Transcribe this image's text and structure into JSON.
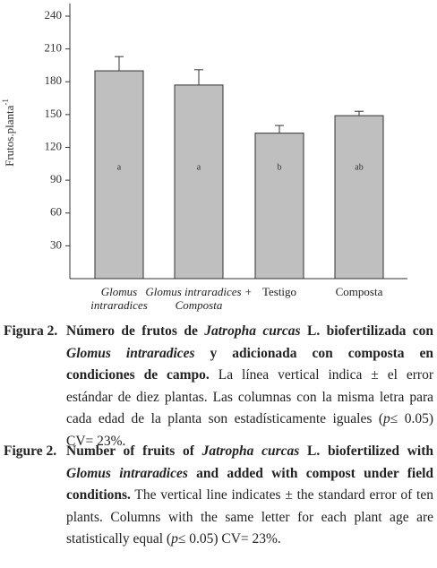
{
  "chart_data": {
    "type": "bar",
    "y_label": "Frutos.planta",
    "y_label_sup": "-1",
    "categories": [
      "Glomus intraradices",
      "Glomus intraradices + Composta",
      "Testigo",
      "Composta"
    ],
    "values": [
      190,
      177,
      133,
      149
    ],
    "errors": [
      13,
      14,
      7,
      4
    ],
    "letters": [
      "a",
      "a",
      "b",
      "ab"
    ],
    "color": "#bfbfbf",
    "ylim": [
      0,
      240
    ],
    "yticks": [
      30,
      60,
      90,
      120,
      150,
      180,
      210,
      240
    ]
  },
  "captions": [
    {
      "label": "Figura 2.",
      "runs": [
        {
          "text": "Número de frutos de ",
          "style": "bold"
        },
        {
          "text": "Jatropha curcas",
          "style": "bold-italic"
        },
        {
          "text": " L. biofertilizada con ",
          "style": "bold"
        },
        {
          "text": "Glomus intraradices",
          "style": "bold-italic"
        },
        {
          "text": " y adicionada con composta en condiciones de campo.",
          "style": "bold"
        },
        {
          "text": " La línea vertical indica ± el error estándar de diez plantas. Las columnas con la misma letra para cada edad de la planta son estadísticamente iguales (",
          "style": "normal"
        },
        {
          "text": "p",
          "style": "italic"
        },
        {
          "text": "≤ 0.05) CV= 23%.",
          "style": "normal"
        }
      ]
    },
    {
      "label": "Figure 2.",
      "runs": [
        {
          "text": "Number of fruits of ",
          "style": "bold"
        },
        {
          "text": "Jatropha curcas",
          "style": "bold-italic"
        },
        {
          "text": " L. biofertilized with ",
          "style": "bold"
        },
        {
          "text": "Glomus intraradices",
          "style": "bold-italic"
        },
        {
          "text": " and added with compost under field conditions.",
          "style": "bold"
        },
        {
          "text": " The vertical line indicates ± the standard error of ten plants. Columns with the same letter for each plant age are statistically equal (",
          "style": "normal"
        },
        {
          "text": "p",
          "style": "italic"
        },
        {
          "text": "≤ 0.05) CV= 23%.",
          "style": "normal"
        }
      ]
    }
  ]
}
